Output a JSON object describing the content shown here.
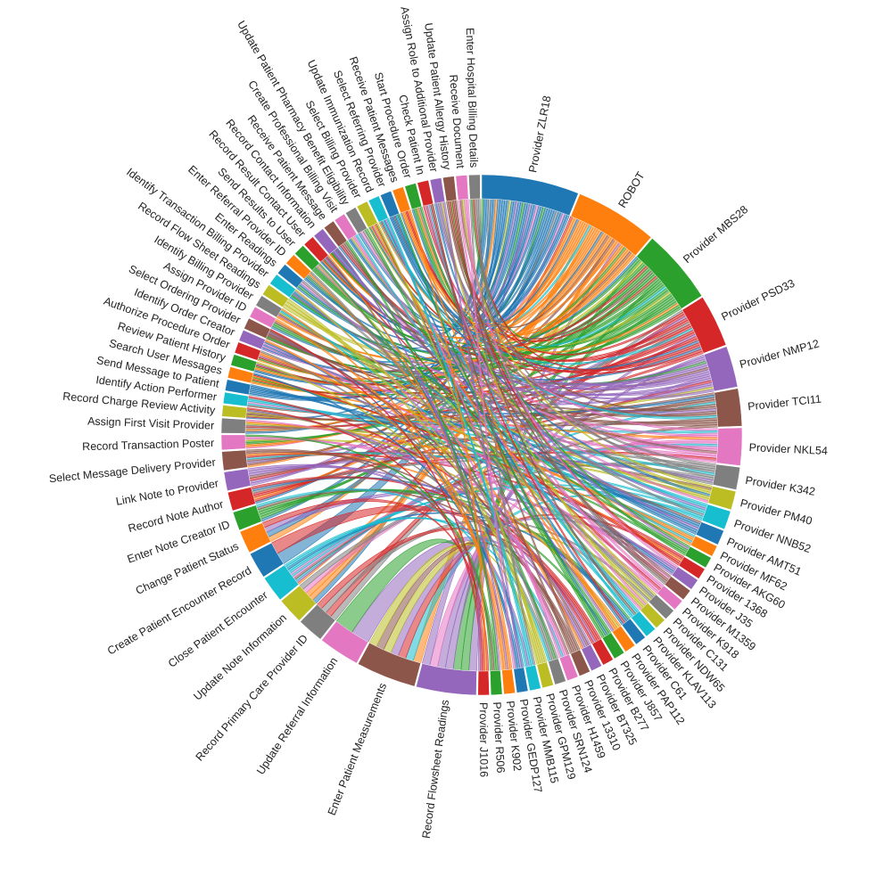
{
  "chart_data": {
    "type": "chord",
    "title": "",
    "palette": [
      "#1f77b4",
      "#ff7f0e",
      "#2ca02c",
      "#d62728",
      "#9467bd",
      "#8c564b",
      "#e377c2",
      "#7f7f7f",
      "#bcbd22",
      "#17becf"
    ],
    "providers": [
      {
        "name": "Provider ZLR18",
        "weight": 13
      },
      {
        "name": "ROBOT",
        "weight": 11
      },
      {
        "name": "Provider MBS28",
        "weight": 10
      },
      {
        "name": "Provider PSD33",
        "weight": 7
      },
      {
        "name": "Provider NMP12",
        "weight": 5.5
      },
      {
        "name": "Provider TCI11",
        "weight": 5
      },
      {
        "name": "Provider NKL54",
        "weight": 5
      },
      {
        "name": "Provider K342",
        "weight": 3
      },
      {
        "name": "Provider PM40",
        "weight": 2.5
      },
      {
        "name": "Provider NNB52",
        "weight": 2.5
      },
      {
        "name": "Provider AMT51",
        "weight": 2
      },
      {
        "name": "Provider MF62",
        "weight": 1.5
      },
      {
        "name": "Provider AKG60",
        "weight": 1.5
      },
      {
        "name": "Provider 1368",
        "weight": 1.5
      },
      {
        "name": "Provider J35",
        "weight": 1.5
      },
      {
        "name": "Provider M1359",
        "weight": 1.5
      },
      {
        "name": "Provider K918",
        "weight": 1.5
      },
      {
        "name": "Provider C131",
        "weight": 1.5
      },
      {
        "name": "Provider NDW65",
        "weight": 1.5
      },
      {
        "name": "Provider KLAV113",
        "weight": 1.5
      },
      {
        "name": "Provider C61",
        "weight": 1.5
      },
      {
        "name": "Provider PAP112",
        "weight": 1.5
      },
      {
        "name": "Provider J857",
        "weight": 1.5
      },
      {
        "name": "Provider B277",
        "weight": 1.5
      },
      {
        "name": "Provider BT325",
        "weight": 1.5
      },
      {
        "name": "Provider 13310",
        "weight": 1.5
      },
      {
        "name": "Provider H1459",
        "weight": 1.5
      },
      {
        "name": "Provider SRN124",
        "weight": 1.5
      },
      {
        "name": "Provider GPM129",
        "weight": 1.5
      },
      {
        "name": "Provider MMB115",
        "weight": 1.5
      },
      {
        "name": "Provider GEDP127",
        "weight": 1.5
      },
      {
        "name": "Provider K902",
        "weight": 1.5
      },
      {
        "name": "Provider R506",
        "weight": 1.5
      },
      {
        "name": "Provider J1016",
        "weight": 1.5
      }
    ],
    "activities": [
      {
        "name": "Record Flowsheet Readings",
        "weight": 8
      },
      {
        "name": "Enter Patient Measurements",
        "weight": 8
      },
      {
        "name": "Update Referral Information",
        "weight": 5.5
      },
      {
        "name": "Record Primary Care Provider ID",
        "weight": 3.5
      },
      {
        "name": "Update Note Information",
        "weight": 3.5
      },
      {
        "name": "Close Patient Encounter",
        "weight": 3.5
      },
      {
        "name": "Create Patient Encounter Record",
        "weight": 3.5
      },
      {
        "name": "Change Patient Status",
        "weight": 3
      },
      {
        "name": "Enter Note Creator ID",
        "weight": 2.5
      },
      {
        "name": "Record Note Author",
        "weight": 2.5
      },
      {
        "name": "Link Note to Provider",
        "weight": 2.5
      },
      {
        "name": "Select Message Delivery Provider",
        "weight": 2.5
      },
      {
        "name": "Record Transaction Poster",
        "weight": 2
      },
      {
        "name": "Assign First Visit Provider",
        "weight": 2
      },
      {
        "name": "Record Charge Review Activity",
        "weight": 1.5
      },
      {
        "name": "Identify Action Performer",
        "weight": 1.5
      },
      {
        "name": "Send Message to Patient",
        "weight": 1.5
      },
      {
        "name": "Search User Messages",
        "weight": 1.5
      },
      {
        "name": "Review Patient History",
        "weight": 1.5
      },
      {
        "name": "Authorize Procedure Order",
        "weight": 1.5
      },
      {
        "name": "Identify Order Creator",
        "weight": 1.5
      },
      {
        "name": "Select Ordering Provider",
        "weight": 1.5
      },
      {
        "name": "Assign Provider ID",
        "weight": 1.5
      },
      {
        "name": "Identify Billing Provider",
        "weight": 1.5
      },
      {
        "name": "Record Flow Sheet Readings",
        "weight": 1.5
      },
      {
        "name": "Identify Transaction Billing Provider",
        "weight": 1.5
      },
      {
        "name": "Enter Readings",
        "weight": 1.5
      },
      {
        "name": "Enter Referral Provider ID",
        "weight": 1.5
      },
      {
        "name": "Send Results to User",
        "weight": 1.5
      },
      {
        "name": "Record Result Contact User",
        "weight": 1.5
      },
      {
        "name": "Record Contact Information",
        "weight": 1.5
      },
      {
        "name": "Receive Patient Message",
        "weight": 1.5
      },
      {
        "name": "Create Professional Billing Visit",
        "weight": 1.5
      },
      {
        "name": "Update Patient Pharmacy Benefit Eligibility",
        "weight": 1.5
      },
      {
        "name": "Select Billing Provider",
        "weight": 1.5
      },
      {
        "name": "Update Immunization Record",
        "weight": 1.5
      },
      {
        "name": "Select Referring Provider",
        "weight": 1.5
      },
      {
        "name": "Receive Patient Messages",
        "weight": 1.5
      },
      {
        "name": "Start Procedure Order",
        "weight": 1.5
      },
      {
        "name": "Check Patient In",
        "weight": 1.5
      },
      {
        "name": "Assign Role to Additional Provider",
        "weight": 1.5
      },
      {
        "name": "Update Patient Allergy History",
        "weight": 1.5
      },
      {
        "name": "Receive Document",
        "weight": 1.5
      },
      {
        "name": "Enter Hospital Billing Details",
        "weight": 1.5
      }
    ]
  }
}
